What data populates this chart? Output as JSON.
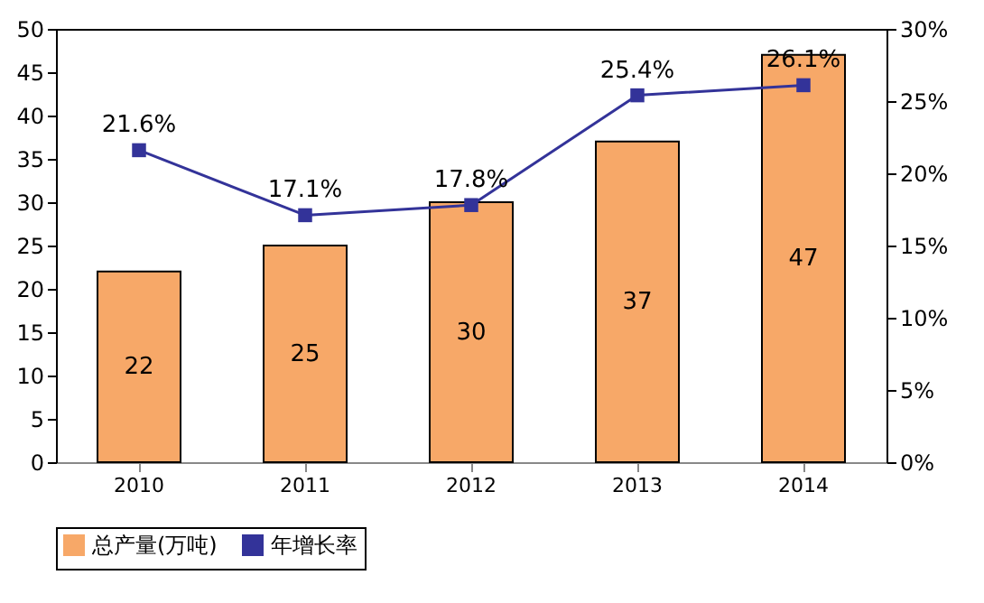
{
  "chart_data": {
    "type": "bar",
    "categories": [
      "2010",
      "2011",
      "2012",
      "2013",
      "2014"
    ],
    "series": [
      {
        "name": "总产量(万吨)",
        "color": "#f7a868",
        "values": [
          22,
          25,
          30,
          37,
          47
        ],
        "value_labels": [
          "22",
          "25",
          "30",
          "37",
          "47"
        ]
      },
      {
        "name": "年增长率",
        "type": "line",
        "axis": "y2",
        "color": "#333399",
        "values": [
          21.6,
          17.1,
          17.8,
          25.4,
          26.1
        ],
        "value_labels": [
          "21.6%",
          "17.1%",
          "17.8%",
          "25.4%",
          "26.1%"
        ]
      }
    ],
    "ylim": [
      0,
      50
    ],
    "yticks": [
      0,
      5,
      10,
      15,
      20,
      25,
      30,
      35,
      40,
      45,
      50
    ],
    "y2lim": [
      0,
      30
    ],
    "y2ticks": [
      {
        "value": 0,
        "label": "0%"
      },
      {
        "value": 5,
        "label": "5%"
      },
      {
        "value": 10,
        "label": "10%"
      },
      {
        "value": 15,
        "label": "15%"
      },
      {
        "value": 20,
        "label": "20%"
      },
      {
        "value": 25,
        "label": "25%"
      },
      {
        "value": 30,
        "label": "30%"
      }
    ],
    "marker": "square",
    "grid": false,
    "legend": "bottom"
  }
}
